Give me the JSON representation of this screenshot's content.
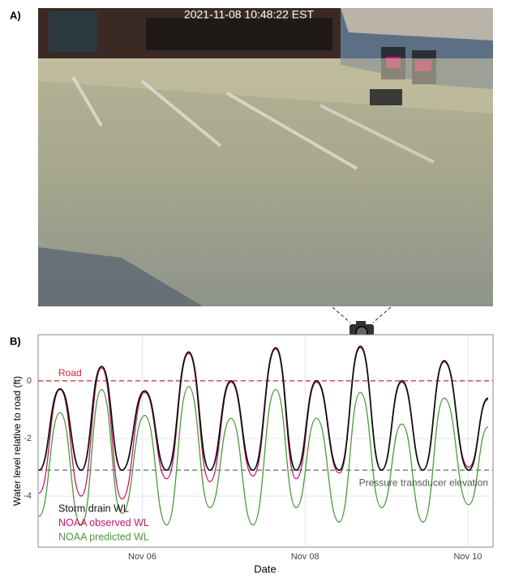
{
  "photo": {
    "label": "A)",
    "timestamp": "2021-11-08 10:48:22 EST"
  },
  "chart_data": {
    "type": "line",
    "panel_label": "B)",
    "xlabel": "Date",
    "ylabel": "Water level relative to road (ft)",
    "x": [
      4.73,
      4.99,
      5.25,
      5.5,
      5.75,
      6.03,
      6.3,
      6.57,
      6.83,
      7.09,
      7.36,
      7.64,
      7.89,
      8.14,
      8.42,
      8.68,
      8.94,
      9.19,
      9.45,
      9.71,
      10.01,
      10.25
    ],
    "series": [
      {
        "name": "Storm drain WL",
        "color": "#111111",
        "values": [
          -3.1,
          -0.28,
          -3.1,
          0.5,
          -3.1,
          -0.35,
          -3.1,
          1.0,
          -3.1,
          0.0,
          -3.1,
          1.15,
          -3.1,
          0.0,
          -3.1,
          1.2,
          -3.1,
          0.0,
          -3.1,
          0.7,
          -3.1,
          -0.6
        ]
      },
      {
        "name": "NOAA observed WL",
        "color": "#c2186b",
        "values": [
          -3.9,
          -0.3,
          -4.0,
          0.45,
          -4.1,
          -0.4,
          -3.4,
          0.95,
          -3.5,
          -0.05,
          -3.3,
          1.1,
          -3.4,
          -0.05,
          -3.2,
          1.15,
          -3.1,
          -0.05,
          -3.1,
          0.65,
          -3.0,
          -0.65
        ]
      },
      {
        "name": "NOAA predicted WL",
        "color": "#4a9a3a",
        "values": [
          -4.7,
          -1.1,
          -5.0,
          -0.3,
          -4.6,
          -1.2,
          -5.0,
          -0.2,
          -4.4,
          -1.3,
          -5.0,
          -0.3,
          -4.4,
          -1.3,
          -4.9,
          -0.4,
          -4.4,
          -1.5,
          -4.9,
          -0.6,
          -4.3,
          -1.6
        ]
      }
    ],
    "hlines": [
      {
        "value": 0,
        "label": "Road",
        "color": "#d62728"
      },
      {
        "value": -3.1,
        "label": "Pressure transducer elevation",
        "color": "#555555"
      }
    ],
    "xlim": [
      4.72,
      10.31
    ],
    "xticks": [
      {
        "value": 6,
        "label": "Nov 06"
      },
      {
        "value": 8,
        "label": "Nov 08"
      },
      {
        "value": 10,
        "label": "Nov 10"
      }
    ],
    "ylim": [
      -5.77,
      1.6
    ],
    "yticks": [
      -4,
      -2,
      0
    ],
    "grid": true
  }
}
